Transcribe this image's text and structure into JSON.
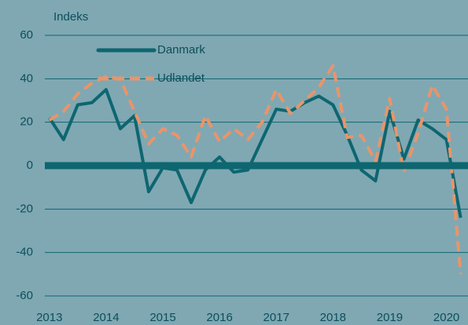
{
  "chart_data": {
    "type": "line",
    "y_label": "Indeks",
    "x": [
      2013,
      2013.25,
      2013.5,
      2013.75,
      2014,
      2014.25,
      2014.5,
      2014.75,
      2015,
      2015.25,
      2015.5,
      2015.75,
      2016,
      2016.25,
      2016.5,
      2016.75,
      2017,
      2017.25,
      2017.5,
      2017.75,
      2018,
      2018.25,
      2018.5,
      2018.75,
      2019,
      2019.25,
      2019.5,
      2019.75,
      2020,
      2020.25
    ],
    "series": [
      {
        "name": "Danmark",
        "color": "#0e6670",
        "dashed": false,
        "values": [
          22,
          12,
          28,
          29,
          35,
          17,
          23,
          -12,
          -1,
          -2,
          -17,
          -2,
          4,
          -3,
          -2,
          12,
          26,
          25,
          29,
          32,
          28,
          14,
          -2,
          -7,
          25,
          3,
          21,
          17,
          12,
          -24
        ]
      },
      {
        "name": "Udlandet",
        "color": "#e8956a",
        "dashed": true,
        "values": [
          21,
          25,
          33,
          38,
          41,
          40,
          25,
          10,
          17,
          14,
          4,
          23,
          11,
          17,
          12,
          20,
          35,
          24,
          30,
          36,
          46,
          13,
          14,
          2,
          31,
          -3,
          15,
          37,
          26,
          -50
        ]
      }
    ],
    "xlim": [
      2012.92,
      2020.38
    ],
    "xticks": [
      2013,
      2014,
      2015,
      2016,
      2017,
      2018,
      2019,
      2020
    ],
    "ylim": [
      -60,
      60
    ],
    "yticks": [
      -60,
      -40,
      -20,
      0,
      20,
      40,
      60
    ],
    "grid": true,
    "legend": "top-left"
  }
}
